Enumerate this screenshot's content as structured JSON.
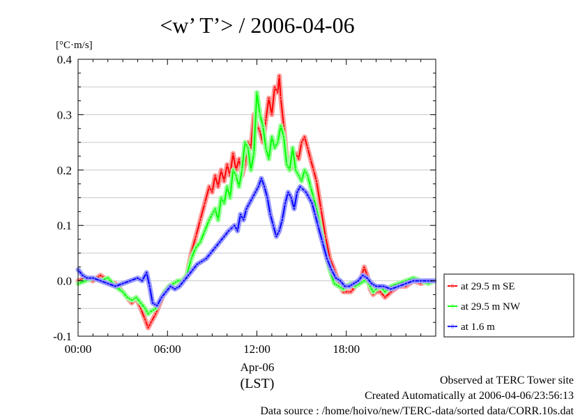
{
  "chart_data": {
    "type": "line",
    "title": "<w’ T’> / 2006-04-06",
    "ylabel": "[°C·m/s]",
    "xlabel_date": "Apr-06",
    "xlabel_zone": "(LST)",
    "xlim": [
      0,
      24
    ],
    "ylim": [
      -0.1,
      0.4
    ],
    "yticks": [
      -0.1,
      0.0,
      0.1,
      0.2,
      0.3,
      0.4
    ],
    "ytick_labels": [
      "-0.1",
      "0.0",
      "0.1",
      "0.2",
      "0.3",
      "0.4"
    ],
    "xticks": [
      0,
      6,
      12,
      18
    ],
    "xtick_labels": [
      "00:00",
      "06:00",
      "12:00",
      "18:00"
    ],
    "grid": true,
    "legend_position": "right",
    "series": [
      {
        "name": "at 29.5 m SE",
        "color": "#ff0000",
        "marker_color": "#ff9a9a",
        "x": [
          0,
          0.5,
          1.0,
          1.5,
          2.0,
          2.5,
          3.0,
          3.3,
          3.6,
          3.9,
          4.2,
          4.5,
          4.7,
          4.9,
          5.2,
          5.5,
          5.8,
          6.1,
          6.4,
          6.7,
          7.0,
          7.3,
          7.6,
          7.9,
          8.2,
          8.5,
          8.8,
          9.0,
          9.2,
          9.4,
          9.6,
          9.8,
          10.0,
          10.2,
          10.4,
          10.6,
          10.8,
          11.0,
          11.2,
          11.4,
          11.6,
          11.8,
          12.0,
          12.2,
          12.4,
          12.6,
          12.8,
          13.0,
          13.2,
          13.4,
          13.5,
          13.6,
          13.8,
          14.0,
          14.2,
          14.4,
          14.6,
          14.8,
          15.0,
          15.2,
          15.4,
          15.6,
          15.8,
          16.0,
          16.3,
          16.6,
          16.9,
          17.2,
          17.5,
          17.8,
          18.0,
          18.3,
          18.6,
          18.9,
          19.2,
          19.4,
          19.6,
          19.8,
          20.0,
          20.3,
          20.6,
          21.0,
          21.5,
          22.0,
          22.5,
          23.0,
          23.5,
          23.9
        ],
        "y": [
          0.0,
          0.005,
          0.0,
          0.01,
          0.0,
          -0.005,
          -0.02,
          -0.03,
          -0.04,
          -0.03,
          -0.05,
          -0.07,
          -0.085,
          -0.075,
          -0.06,
          -0.04,
          -0.02,
          -0.01,
          -0.005,
          0.0,
          0.0,
          0.01,
          0.05,
          0.08,
          0.11,
          0.14,
          0.17,
          0.16,
          0.19,
          0.17,
          0.2,
          0.18,
          0.21,
          0.19,
          0.23,
          0.2,
          0.22,
          0.19,
          0.21,
          0.25,
          0.24,
          0.3,
          0.28,
          0.27,
          0.25,
          0.29,
          0.33,
          0.3,
          0.35,
          0.34,
          0.37,
          0.33,
          0.28,
          0.22,
          0.2,
          0.21,
          0.23,
          0.22,
          0.25,
          0.26,
          0.24,
          0.22,
          0.2,
          0.18,
          0.13,
          0.08,
          0.04,
          0.02,
          -0.005,
          -0.02,
          -0.02,
          -0.02,
          -0.01,
          -0.005,
          0.025,
          0.01,
          -0.015,
          -0.025,
          -0.02,
          -0.02,
          -0.03,
          -0.02,
          -0.01,
          -0.01,
          0.0,
          -0.005,
          0.0,
          0.0
        ]
      },
      {
        "name": "at 29.5 m NW",
        "color": "#00ff00",
        "marker_color": "#9aff9a",
        "x": [
          0,
          0.5,
          1.0,
          1.5,
          2.0,
          2.5,
          3.0,
          3.3,
          3.6,
          3.9,
          4.2,
          4.5,
          4.7,
          4.9,
          5.2,
          5.5,
          5.8,
          6.1,
          6.4,
          6.7,
          7.0,
          7.3,
          7.6,
          7.9,
          8.2,
          8.5,
          8.8,
          9.0,
          9.2,
          9.4,
          9.6,
          9.8,
          10.0,
          10.2,
          10.4,
          10.6,
          10.8,
          11.0,
          11.2,
          11.4,
          11.6,
          11.8,
          12.0,
          12.2,
          12.4,
          12.6,
          12.8,
          13.0,
          13.2,
          13.4,
          13.6,
          13.8,
          14.0,
          14.2,
          14.4,
          14.6,
          14.8,
          15.0,
          15.2,
          15.4,
          15.6,
          15.8,
          16.0,
          16.3,
          16.6,
          16.9,
          17.2,
          17.5,
          17.8,
          18.0,
          18.3,
          18.6,
          18.9,
          19.2,
          19.4,
          19.6,
          19.8,
          20.0,
          20.3,
          20.6,
          21.0,
          21.5,
          22.0,
          22.5,
          23.0,
          23.5,
          23.9
        ],
        "y": [
          -0.005,
          0.0,
          0.005,
          0.0,
          0.005,
          -0.01,
          -0.02,
          -0.03,
          -0.035,
          -0.03,
          -0.04,
          -0.05,
          -0.06,
          -0.055,
          -0.05,
          -0.035,
          -0.02,
          -0.01,
          -0.005,
          0.0,
          0.0,
          0.01,
          0.04,
          0.06,
          0.07,
          0.09,
          0.11,
          0.12,
          0.13,
          0.11,
          0.15,
          0.14,
          0.17,
          0.15,
          0.2,
          0.19,
          0.17,
          0.2,
          0.25,
          0.24,
          0.2,
          0.23,
          0.34,
          0.3,
          0.28,
          0.24,
          0.22,
          0.26,
          0.24,
          0.25,
          0.28,
          0.26,
          0.21,
          0.2,
          0.24,
          0.2,
          0.19,
          0.18,
          0.2,
          0.19,
          0.17,
          0.15,
          0.13,
          0.09,
          0.05,
          0.02,
          -0.005,
          -0.01,
          -0.015,
          -0.01,
          -0.005,
          -0.01,
          -0.005,
          0.0,
          0.0,
          -0.01,
          -0.02,
          -0.015,
          -0.01,
          -0.02,
          -0.01,
          -0.005,
          0.0,
          0.005,
          0.0,
          -0.005,
          0.0
        ]
      },
      {
        "name": "at 1.6 m",
        "color": "#0000ff",
        "marker_color": "#9a9aff",
        "x": [
          0,
          0.3,
          0.6,
          1.0,
          1.5,
          2.0,
          2.5,
          3.0,
          3.5,
          4.0,
          4.3,
          4.6,
          4.8,
          5.0,
          5.3,
          5.6,
          5.9,
          6.2,
          6.5,
          6.8,
          7.1,
          7.4,
          7.7,
          8.0,
          8.3,
          8.6,
          8.9,
          9.2,
          9.5,
          9.8,
          10.1,
          10.3,
          10.5,
          10.7,
          10.9,
          11.1,
          11.3,
          11.5,
          11.7,
          11.9,
          12.1,
          12.3,
          12.5,
          12.7,
          12.9,
          13.1,
          13.3,
          13.5,
          13.7,
          13.9,
          14.1,
          14.3,
          14.5,
          14.7,
          14.9,
          15.1,
          15.3,
          15.5,
          15.7,
          15.9,
          16.1,
          16.4,
          16.7,
          17.0,
          17.3,
          17.6,
          17.9,
          18.2,
          18.5,
          18.8,
          19.1,
          19.4,
          19.7,
          20.0,
          20.5,
          21.0,
          21.5,
          22.0,
          22.5,
          23.0,
          23.5,
          23.9
        ],
        "y": [
          0.02,
          0.01,
          0.005,
          0.005,
          0.0,
          -0.005,
          -0.01,
          -0.005,
          0.0,
          0.005,
          0.0,
          0.015,
          -0.01,
          -0.04,
          -0.045,
          -0.03,
          -0.02,
          -0.01,
          -0.015,
          -0.01,
          0.0,
          0.01,
          0.02,
          0.03,
          0.035,
          0.04,
          0.05,
          0.06,
          0.07,
          0.08,
          0.09,
          0.095,
          0.1,
          0.09,
          0.12,
          0.11,
          0.13,
          0.14,
          0.15,
          0.16,
          0.17,
          0.185,
          0.17,
          0.15,
          0.12,
          0.1,
          0.08,
          0.09,
          0.11,
          0.14,
          0.16,
          0.15,
          0.13,
          0.16,
          0.17,
          0.165,
          0.16,
          0.15,
          0.14,
          0.12,
          0.1,
          0.07,
          0.04,
          0.02,
          0.005,
          0.0,
          -0.01,
          -0.01,
          -0.005,
          0.0,
          0.01,
          0.005,
          -0.005,
          -0.01,
          -0.01,
          -0.015,
          -0.01,
          -0.005,
          0.0,
          0.0,
          0.0,
          0.0
        ]
      }
    ]
  },
  "footer": {
    "line1": "Observed at TERC Tower site",
    "line2": "Created Automatically at 2006-04-06/23:56:13",
    "line3": "Data source : /home/hoivo/new/TERC-data/sorted  data/CORR.10s.dat"
  }
}
